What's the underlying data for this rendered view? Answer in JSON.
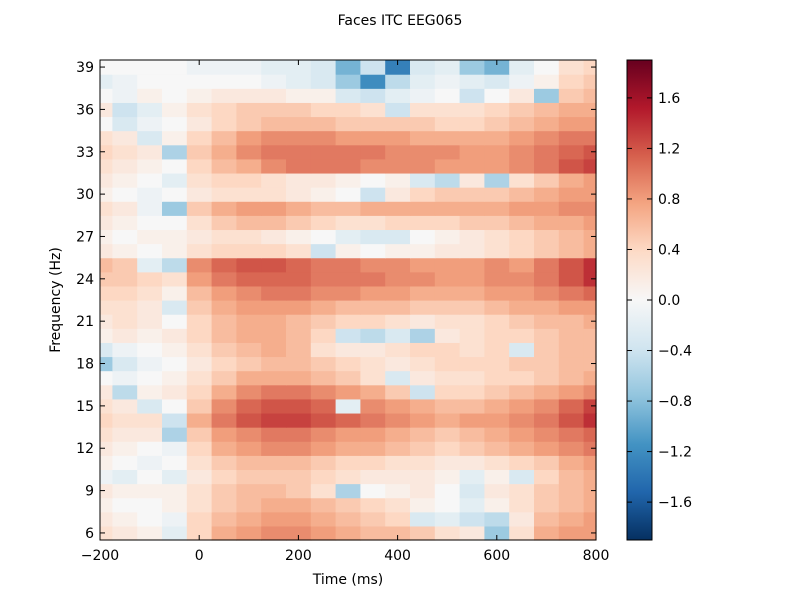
{
  "chart_data": {
    "type": "heatmap",
    "title": "Faces ITC EEG065",
    "xlabel": "Time (ms)",
    "ylabel": "Frequency (Hz)",
    "xlim": [
      -200,
      800
    ],
    "ylim": [
      5.5,
      39.5
    ],
    "x_ticks": [
      -200,
      0,
      200,
      400,
      600,
      800
    ],
    "x_tick_labels": [
      "−200",
      "0",
      "200",
      "400",
      "600",
      "800"
    ],
    "y_ticks": [
      6,
      9,
      12,
      15,
      18,
      21,
      24,
      27,
      30,
      33,
      36,
      39
    ],
    "y_tick_labels": [
      "6",
      "9",
      "12",
      "15",
      "18",
      "21",
      "24",
      "27",
      "30",
      "33",
      "36",
      "39"
    ],
    "frequencies": [
      6,
      7,
      8,
      9,
      10,
      11,
      12,
      13,
      14,
      15,
      16,
      17,
      18,
      19,
      20,
      21,
      22,
      23,
      24,
      25,
      26,
      27,
      28,
      29,
      30,
      31,
      32,
      33,
      34,
      35,
      36,
      37,
      38,
      39
    ],
    "times": [
      -200,
      -150,
      -100,
      -50,
      0,
      50,
      100,
      150,
      200,
      250,
      300,
      350,
      400,
      450,
      500,
      550,
      600,
      650,
      700,
      750,
      800
    ],
    "values": [
      [
        0.3,
        0.2,
        0.1,
        -0.2,
        0.4,
        0.7,
        0.8,
        0.9,
        0.9,
        0.8,
        0.7,
        0.6,
        0.6,
        0.5,
        0.3,
        0.2,
        -0.7,
        0.3,
        0.7,
        0.8,
        0.8
      ],
      [
        0.2,
        0.1,
        0.0,
        -0.1,
        0.4,
        0.6,
        0.7,
        0.8,
        0.8,
        0.7,
        0.6,
        0.5,
        0.4,
        -0.3,
        -0.2,
        -0.4,
        -0.5,
        0.2,
        0.6,
        0.7,
        0.8
      ],
      [
        0.1,
        0.0,
        0.0,
        0.1,
        0.3,
        0.5,
        0.6,
        0.7,
        0.7,
        0.6,
        0.5,
        0.4,
        0.3,
        0.1,
        0.0,
        -0.2,
        0.1,
        0.3,
        0.5,
        0.6,
        0.7
      ],
      [
        0.2,
        0.1,
        0.1,
        0.1,
        0.3,
        0.5,
        0.6,
        0.6,
        0.5,
        0.3,
        -0.6,
        0.0,
        0.1,
        0.2,
        0.0,
        -0.3,
        0.2,
        0.3,
        0.5,
        0.6,
        0.7
      ],
      [
        -0.1,
        -0.2,
        0.0,
        -0.2,
        0.2,
        0.4,
        0.5,
        0.5,
        0.5,
        0.4,
        0.3,
        0.2,
        0.2,
        0.2,
        0.1,
        -0.2,
        0.1,
        -0.3,
        0.4,
        0.6,
        0.7
      ],
      [
        0.1,
        0.0,
        -0.1,
        0.0,
        0.3,
        0.5,
        0.6,
        0.6,
        0.6,
        0.5,
        0.4,
        0.4,
        0.3,
        0.3,
        0.2,
        0.2,
        0.3,
        0.4,
        0.5,
        0.7,
        0.8
      ],
      [
        0.2,
        0.1,
        0.0,
        -0.1,
        0.4,
        0.7,
        0.8,
        0.9,
        0.9,
        0.8,
        0.7,
        0.7,
        0.6,
        0.5,
        0.4,
        0.5,
        0.6,
        0.7,
        0.8,
        0.9,
        1.0
      ],
      [
        0.3,
        0.2,
        0.2,
        -0.6,
        0.5,
        0.8,
        0.9,
        1.0,
        1.0,
        0.9,
        0.8,
        0.8,
        0.7,
        0.6,
        0.5,
        0.6,
        0.7,
        0.8,
        0.9,
        1.0,
        1.1
      ],
      [
        0.4,
        0.3,
        0.3,
        -0.4,
        0.7,
        1.0,
        1.2,
        1.3,
        1.3,
        1.2,
        1.1,
        1.0,
        0.9,
        0.8,
        0.7,
        0.8,
        0.8,
        0.9,
        1.0,
        1.2,
        1.4
      ],
      [
        0.3,
        0.2,
        -0.3,
        0.0,
        0.5,
        0.9,
        1.1,
        1.2,
        1.2,
        1.1,
        -0.2,
        0.9,
        0.8,
        0.7,
        0.6,
        0.6,
        0.7,
        0.8,
        0.9,
        1.1,
        1.3
      ],
      [
        0.2,
        -0.5,
        0.1,
        0.2,
        0.4,
        0.7,
        0.9,
        1.0,
        1.0,
        0.9,
        0.8,
        0.7,
        0.5,
        -0.4,
        0.4,
        0.4,
        0.5,
        0.6,
        0.7,
        0.8,
        0.9
      ],
      [
        0.0,
        -0.1,
        0.0,
        0.1,
        0.3,
        0.5,
        0.7,
        0.7,
        0.7,
        0.6,
        0.5,
        0.3,
        -0.3,
        0.2,
        0.3,
        0.3,
        0.4,
        0.4,
        0.5,
        0.6,
        0.7
      ],
      [
        -0.7,
        -0.3,
        -0.1,
        0.0,
        0.2,
        0.4,
        0.5,
        0.6,
        0.6,
        0.5,
        0.4,
        0.3,
        0.2,
        0.3,
        0.4,
        0.4,
        0.4,
        0.5,
        0.5,
        0.6,
        0.6
      ],
      [
        -0.3,
        -0.1,
        0.0,
        0.1,
        0.3,
        0.5,
        0.6,
        0.7,
        0.6,
        0.3,
        0.2,
        0.2,
        0.3,
        0.4,
        0.4,
        0.3,
        0.4,
        -0.3,
        0.5,
        0.6,
        0.6
      ],
      [
        0.1,
        0.2,
        0.1,
        0.2,
        0.4,
        0.6,
        0.7,
        0.7,
        0.6,
        0.4,
        -0.4,
        -0.5,
        -0.3,
        -0.6,
        0.2,
        0.3,
        0.4,
        0.4,
        0.5,
        0.6,
        0.6
      ],
      [
        0.2,
        0.3,
        0.2,
        0.0,
        0.4,
        0.6,
        0.7,
        0.7,
        0.6,
        0.5,
        0.4,
        0.4,
        0.3,
        0.2,
        0.3,
        0.3,
        0.4,
        0.5,
        0.6,
        0.6,
        0.7
      ],
      [
        0.3,
        0.3,
        0.2,
        -0.3,
        0.5,
        0.7,
        0.8,
        0.8,
        0.8,
        0.7,
        0.6,
        0.6,
        0.6,
        0.5,
        0.5,
        0.5,
        0.6,
        0.7,
        0.7,
        0.8,
        0.8
      ],
      [
        0.4,
        0.4,
        0.3,
        0.1,
        0.6,
        0.8,
        0.9,
        1.0,
        1.0,
        0.9,
        0.9,
        0.8,
        0.8,
        0.7,
        0.7,
        0.7,
        0.8,
        0.8,
        0.9,
        1.0,
        1.1
      ],
      [
        0.5,
        0.5,
        0.4,
        0.3,
        0.8,
        1.0,
        1.1,
        1.1,
        1.1,
        1.0,
        1.0,
        1.0,
        0.9,
        0.9,
        0.8,
        0.8,
        0.9,
        0.9,
        1.0,
        1.2,
        1.4
      ],
      [
        0.6,
        0.5,
        -0.2,
        -0.5,
        0.9,
        1.1,
        1.2,
        1.2,
        1.1,
        1.0,
        1.0,
        0.9,
        0.9,
        0.8,
        0.8,
        0.8,
        0.9,
        0.8,
        1.0,
        1.2,
        1.4
      ],
      [
        0.2,
        0.1,
        0.0,
        0.1,
        0.3,
        0.4,
        0.4,
        0.4,
        0.3,
        -0.4,
        0.1,
        0.0,
        0.1,
        0.1,
        0.2,
        0.2,
        0.3,
        0.4,
        0.5,
        0.6,
        0.7
      ],
      [
        0.1,
        0.0,
        0.1,
        0.1,
        0.2,
        0.3,
        0.3,
        0.2,
        0.1,
        0.0,
        -0.2,
        -0.3,
        -0.3,
        0.0,
        0.1,
        0.2,
        0.3,
        0.4,
        0.5,
        0.6,
        0.7
      ],
      [
        0.2,
        0.1,
        0.0,
        0.0,
        0.3,
        0.5,
        0.6,
        0.6,
        0.5,
        0.4,
        0.3,
        0.3,
        0.4,
        0.4,
        0.4,
        0.5,
        0.5,
        0.6,
        0.7,
        0.7,
        0.8
      ],
      [
        0.3,
        0.2,
        -0.1,
        -0.7,
        0.5,
        0.7,
        0.8,
        0.8,
        0.7,
        0.6,
        0.6,
        0.7,
        0.7,
        0.7,
        0.7,
        0.7,
        0.7,
        0.8,
        0.8,
        0.9,
        0.9
      ],
      [
        0.1,
        0.0,
        -0.1,
        0.0,
        0.2,
        0.3,
        0.3,
        0.3,
        0.2,
        0.1,
        0.0,
        -0.4,
        0.2,
        0.4,
        0.5,
        0.5,
        0.5,
        0.6,
        0.7,
        0.8,
        0.8
      ],
      [
        0.2,
        0.1,
        0.0,
        -0.2,
        0.3,
        0.4,
        0.4,
        0.3,
        0.2,
        0.2,
        0.1,
        0.0,
        0.1,
        -0.3,
        -0.5,
        0.2,
        -0.6,
        0.3,
        0.5,
        0.7,
        0.8
      ],
      [
        0.3,
        0.2,
        0.1,
        0.0,
        0.4,
        0.6,
        0.7,
        0.9,
        1.0,
        1.0,
        1.0,
        0.9,
        0.9,
        0.9,
        0.8,
        0.8,
        0.8,
        0.9,
        1.0,
        1.2,
        1.3
      ],
      [
        0.4,
        0.3,
        0.2,
        -0.6,
        0.5,
        0.7,
        0.9,
        1.0,
        1.0,
        1.0,
        1.0,
        1.0,
        0.9,
        0.9,
        0.9,
        0.8,
        0.8,
        0.9,
        1.0,
        1.1,
        1.2
      ],
      [
        0.3,
        0.2,
        -0.3,
        0.1,
        0.4,
        0.6,
        0.8,
        0.9,
        0.9,
        0.9,
        0.8,
        0.8,
        0.8,
        0.7,
        0.7,
        0.7,
        0.7,
        0.8,
        0.9,
        1.0,
        1.0
      ],
      [
        0.0,
        -0.3,
        -0.1,
        0.0,
        0.2,
        0.4,
        0.5,
        0.6,
        0.6,
        0.6,
        0.5,
        0.5,
        0.5,
        0.5,
        0.4,
        0.4,
        0.5,
        0.6,
        0.7,
        0.8,
        0.8
      ],
      [
        0.2,
        -0.4,
        -0.2,
        0.1,
        0.3,
        0.4,
        0.5,
        0.5,
        0.5,
        0.4,
        0.4,
        0.3,
        -0.4,
        0.3,
        0.3,
        0.3,
        0.4,
        0.5,
        0.6,
        0.7,
        0.7
      ],
      [
        0.0,
        -0.1,
        0.1,
        0.0,
        0.1,
        0.2,
        0.2,
        0.2,
        0.1,
        0.1,
        -0.3,
        -0.4,
        -0.2,
        -0.1,
        0.0,
        -0.4,
        0.0,
        0.2,
        -0.7,
        0.5,
        0.6
      ],
      [
        -0.2,
        -0.1,
        0.0,
        0.0,
        0.0,
        0.0,
        0.0,
        -0.1,
        -0.2,
        -0.3,
        -0.7,
        -1.2,
        -0.5,
        -0.2,
        -0.1,
        -0.2,
        -0.3,
        -0.1,
        0.1,
        0.4,
        0.5
      ],
      [
        0.0,
        0.0,
        0.0,
        0.0,
        -0.1,
        -0.1,
        -0.1,
        -0.2,
        -0.2,
        -0.3,
        -0.9,
        -0.4,
        -1.3,
        -0.3,
        -0.2,
        -0.7,
        -0.9,
        -0.2,
        0.0,
        0.3,
        0.4
      ]
    ],
    "colorbar": {
      "vmin": -1.9,
      "vmax": 1.9,
      "ticks": [
        -1.6,
        -1.2,
        -0.8,
        -0.4,
        0.0,
        0.4,
        0.8,
        1.2,
        1.6
      ],
      "tick_labels": [
        "−1.6",
        "−1.2",
        "−0.8",
        "−0.4",
        "0.0",
        "0.4",
        "0.8",
        "1.2",
        "1.6"
      ],
      "colormap": [
        "#053061",
        "#2166ac",
        "#4393c3",
        "#92c5de",
        "#d1e5f0",
        "#f7f7f7",
        "#fddbc7",
        "#f4a582",
        "#d6604d",
        "#b2182b",
        "#67001f"
      ]
    },
    "grid": false,
    "legend": false
  }
}
